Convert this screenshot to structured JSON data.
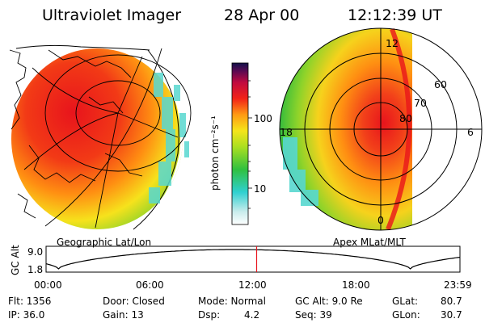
{
  "header": {
    "title": "Ultraviolet Imager",
    "date": "28 Apr 00",
    "time": "12:12:39 UT"
  },
  "colors": {
    "red": "#e8141c",
    "orange": "#ff8f12",
    "yellow": "#f6e21c",
    "green": "#3ebf3a",
    "cyan": "#58d8d0",
    "magenta": "#8a0a4a",
    "navy": "#11114a"
  },
  "left_panel": {
    "caption": "Geographic Lat/Lon"
  },
  "right_panel": {
    "caption": "Apex MLat/MLT",
    "lat_labels": [
      "60",
      "70",
      "80"
    ],
    "mlt_labels": {
      "top": "12",
      "left": "18",
      "right": "6",
      "bottom": "0"
    }
  },
  "colorbar": {
    "unit_label": "photon cm⁻²s⁻¹",
    "ticks": [
      "100",
      "10"
    ]
  },
  "orbit": {
    "ylabel": "GC Alt",
    "ytick_top": "9.0",
    "ytick_bottom": "1.8",
    "x_ticks": [
      "00:00",
      "06:00",
      "12:00",
      "18:00",
      "23:59"
    ],
    "current_time_hours": 12.21
  },
  "footer": {
    "flt": "Flt: 1356",
    "ip": "IP: 36.0",
    "door": "Door: Closed",
    "gain": "Gain: 13",
    "mode": "Mode: Normal",
    "dsp_label": "Dsp:",
    "dsp_value": "4.2",
    "gc_alt": "GC Alt: 9.0 Re",
    "seq": "Seq: 39",
    "glat_label": "GLat:",
    "glat_value": "80.7",
    "glon_label": "GLon:",
    "glon_value": "30.7"
  }
}
